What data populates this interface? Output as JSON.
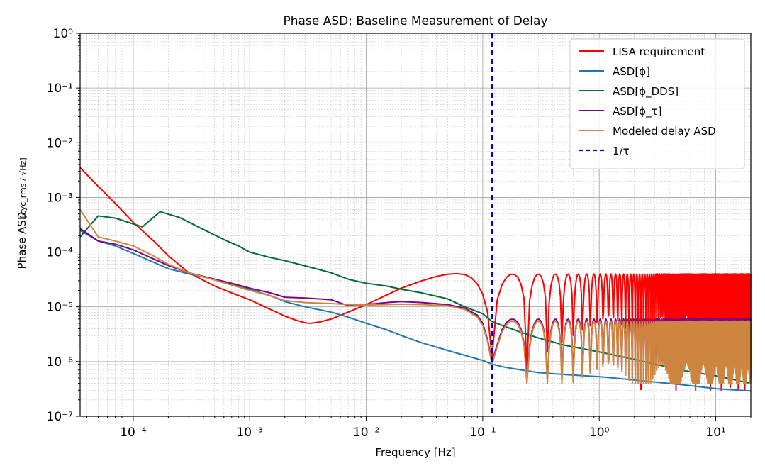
{
  "chart_data": {
    "type": "line",
    "title": "Phase ASD; Baseline Measurement of Delay",
    "xlabel": "Frequency [Hz]",
    "ylabel": "Phase ASD",
    "ylabel_unit": "[cyc_rms / √Hz]",
    "xscale": "log",
    "yscale": "log",
    "xlim": [
      3.5e-05,
      20
    ],
    "ylim": [
      1e-07,
      1
    ],
    "grid": true,
    "legend_position": "top-right",
    "xticks": [
      {
        "value": 0.0001,
        "label": "10⁻⁴"
      },
      {
        "value": 0.001,
        "label": "10⁻³"
      },
      {
        "value": 0.01,
        "label": "10⁻²"
      },
      {
        "value": 0.1,
        "label": "10⁻¹"
      },
      {
        "value": 1,
        "label": "10⁰"
      },
      {
        "value": 10,
        "label": "10¹"
      }
    ],
    "yticks": [
      {
        "value": 1e-07,
        "label": "10⁻⁷"
      },
      {
        "value": 1e-06,
        "label": "10⁻⁶"
      },
      {
        "value": 1e-05,
        "label": "10⁻⁵"
      },
      {
        "value": 0.0001,
        "label": "10⁻⁴"
      },
      {
        "value": 0.001,
        "label": "10⁻³"
      },
      {
        "value": 0.01,
        "label": "10⁻²"
      },
      {
        "value": 0.1,
        "label": "10⁻¹"
      },
      {
        "value": 1,
        "label": "10⁰"
      }
    ],
    "vline": {
      "name": "1/τ",
      "x": 0.12,
      "color": "#0000dd",
      "style": "dashed"
    },
    "series": [
      {
        "name": "LISA requirement",
        "color": "#ff0000",
        "x": [
          3.5e-05,
          5e-05,
          7e-05,
          0.0001,
          0.00015,
          0.0002,
          0.0003,
          0.0005,
          0.0007,
          0.001,
          0.0015,
          0.002,
          0.0025,
          0.003,
          0.0033,
          0.004,
          0.005,
          0.007,
          0.01,
          0.015,
          0.02,
          0.03,
          0.04,
          0.05,
          0.06,
          0.07,
          0.08,
          0.09,
          0.1,
          0.11,
          0.12
        ],
        "y": [
          0.0035,
          0.0016,
          0.00078,
          0.00035,
          0.00016,
          8.6e-05,
          4.2e-05,
          2.4e-05,
          1.8e-05,
          1.35e-05,
          9e-06,
          6.8e-06,
          5.7e-06,
          5.1e-06,
          5e-06,
          5.3e-06,
          6e-06,
          8e-06,
          1.1e-05,
          1.65e-05,
          2.2e-05,
          3e-05,
          3.6e-05,
          3.95e-05,
          4.05e-05,
          3.9e-05,
          3.4e-05,
          2.6e-05,
          1.7e-05,
          8e-06,
          1.2e-06
        ],
        "oscillation": {
          "from": 0.12,
          "to": 20,
          "peak": 4e-05,
          "period_hz": 0.12,
          "min_value": 3e-07
        }
      },
      {
        "name": "ASD[ϕ]",
        "color": "#1f77b4",
        "x": [
          3.5e-05,
          5e-05,
          7e-05,
          0.0001,
          0.00015,
          0.0002,
          0.0003,
          0.0005,
          0.0007,
          0.001,
          0.0015,
          0.002,
          0.003,
          0.005,
          0.007,
          0.01,
          0.015,
          0.02,
          0.03,
          0.05,
          0.07,
          0.1,
          0.12,
          0.15,
          0.2,
          0.3,
          0.5,
          1,
          2,
          5,
          10,
          20
        ],
        "y": [
          0.00025,
          0.00016,
          0.00013,
          9.5e-05,
          6.5e-05,
          5e-05,
          4e-05,
          3.2e-05,
          2.6e-05,
          2.1e-05,
          1.6e-05,
          1.25e-05,
          1e-05,
          8e-06,
          6.5e-06,
          5e-06,
          3.8e-06,
          3e-06,
          2.2e-06,
          1.6e-06,
          1.3e-06,
          1.05e-06,
          9e-07,
          8e-07,
          7.2e-07,
          6.3e-07,
          5.8e-07,
          5.3e-07,
          4.6e-07,
          3.8e-07,
          3.2e-07,
          2.9e-07
        ]
      },
      {
        "name": "ASD[ϕ_DDS]",
        "color": "#006b3a",
        "x": [
          3.5e-05,
          5e-05,
          7e-05,
          0.00012,
          0.00017,
          0.00025,
          0.0004,
          0.0006,
          0.0008,
          0.001,
          0.0015,
          0.002,
          0.003,
          0.005,
          0.007,
          0.01,
          0.015,
          0.02,
          0.03,
          0.05,
          0.07,
          0.1,
          0.12,
          0.15,
          0.2,
          0.3,
          0.5,
          1,
          2,
          3,
          5,
          10,
          20
        ],
        "y": [
          0.00019,
          0.00046,
          0.00042,
          0.00029,
          0.00055,
          0.00043,
          0.00026,
          0.00017,
          0.00013,
          0.0001,
          8e-05,
          7e-05,
          5.6e-05,
          4.2e-05,
          3.2e-05,
          2.7e-05,
          2.4e-05,
          2.1e-05,
          1.8e-05,
          1.4e-05,
          1e-05,
          7.5e-06,
          5.4e-06,
          4.5e-06,
          3.6e-06,
          2.7e-06,
          2e-06,
          1.5e-06,
          1.1e-06,
          9e-07,
          7e-07,
          5.5e-07,
          4e-07
        ]
      },
      {
        "name": "ASD[ϕ_τ]",
        "color": "#800080",
        "x": [
          3.5e-05,
          5e-05,
          7e-05,
          0.0001,
          0.00015,
          0.0002,
          0.0003,
          0.0005,
          0.0007,
          0.001,
          0.0015,
          0.002,
          0.003,
          0.005,
          0.007,
          0.01,
          0.015,
          0.02,
          0.03,
          0.05,
          0.07,
          0.09,
          0.1,
          0.11,
          0.12
        ],
        "y": [
          0.00027,
          0.00016,
          0.00014,
          0.00011,
          7.5e-05,
          5.7e-05,
          4.2e-05,
          3.2e-05,
          2.7e-05,
          2.2e-05,
          1.8e-05,
          1.5e-05,
          1.45e-05,
          1.35e-05,
          1.05e-05,
          1.1e-05,
          1.2e-05,
          1.25e-05,
          1.2e-05,
          1.1e-05,
          9.5e-06,
          7e-06,
          5e-06,
          2.5e-06,
          1e-06
        ],
        "oscillation": {
          "from": 0.12,
          "to": 20,
          "peak": 6e-06,
          "period_hz": 0.12,
          "min_value": 5e-07
        }
      },
      {
        "name": "Modeled delay ASD",
        "color": "#cd853f",
        "x": [
          3.5e-05,
          5e-05,
          7e-05,
          0.0001,
          0.00015,
          0.0002,
          0.0003,
          0.0005,
          0.0007,
          0.001,
          0.0015,
          0.002,
          0.003,
          0.005,
          0.007,
          0.01,
          0.015,
          0.02,
          0.03,
          0.05,
          0.07,
          0.09,
          0.1,
          0.11,
          0.12
        ],
        "y": [
          0.0006,
          0.00019,
          0.00016,
          0.00013,
          8.5e-05,
          6e-05,
          4.2e-05,
          3.1e-05,
          2.5e-05,
          2e-05,
          1.6e-05,
          1.3e-05,
          1.2e-05,
          1.15e-05,
          1.1e-05,
          1.08e-05,
          1.1e-05,
          1.12e-05,
          1.1e-05,
          1.05e-05,
          9e-06,
          6.5e-06,
          4.6e-06,
          2.3e-06,
          9e-07
        ],
        "oscillation": {
          "from": 0.12,
          "to": 20,
          "peak": 5.5e-06,
          "period_hz": 0.12,
          "min_value": 4e-07
        }
      }
    ],
    "legend": [
      {
        "label": "LISA requirement",
        "color": "#ff0000",
        "style": "solid"
      },
      {
        "label": "ASD[ϕ]",
        "color": "#1f77b4",
        "style": "solid"
      },
      {
        "label": "ASD[ϕ_DDS]",
        "color": "#006b3a",
        "style": "solid"
      },
      {
        "label": "ASD[ϕ_τ]",
        "color": "#800080",
        "style": "solid"
      },
      {
        "label": "Modeled delay ASD",
        "color": "#cd853f",
        "style": "solid"
      },
      {
        "label": "1/τ",
        "color": "#0000dd",
        "style": "dashed"
      }
    ]
  }
}
